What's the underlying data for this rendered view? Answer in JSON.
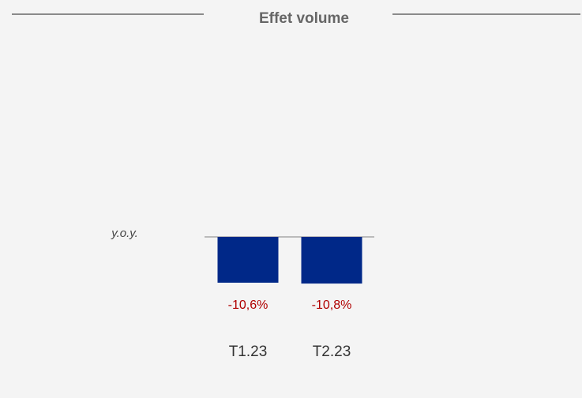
{
  "chart_data": {
    "type": "bar",
    "title": "Effet volume",
    "axis_label": "y.o.y.",
    "categories": [
      "T1.23",
      "T2.23"
    ],
    "values": [
      -10.6,
      -10.8
    ],
    "value_labels": [
      "-10,6%",
      "-10,8%"
    ],
    "color": "#002888",
    "label_color": "#b00000",
    "ylim": [
      -20,
      0
    ]
  }
}
